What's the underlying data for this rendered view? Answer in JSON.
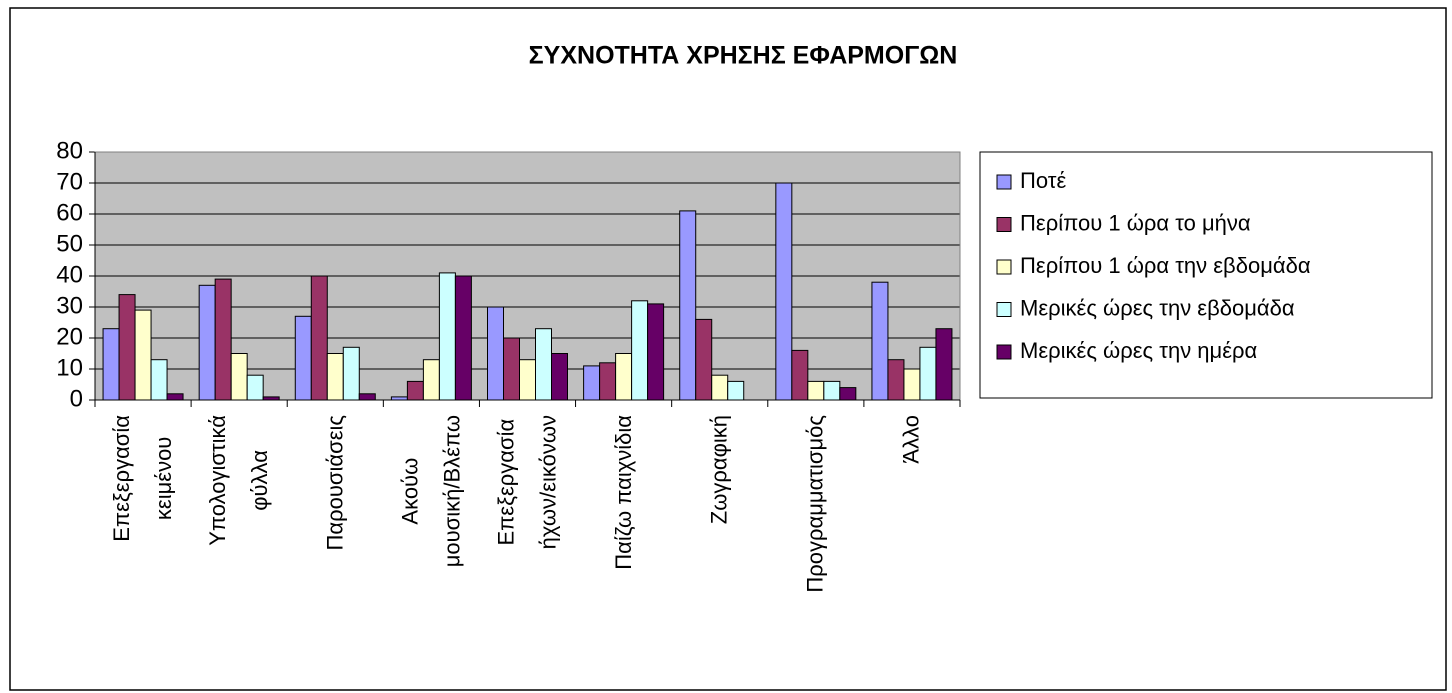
{
  "chart_data": {
    "type": "bar",
    "title": "ΣΥΧΝΟΤΗΤΑ ΧΡΗΣΗΣ ΕΦΑΡΜΟΓΩΝ",
    "categories": [
      "Επεξεργασία\nκειμένου",
      "Υπολογιστικά\nφύλλα",
      "Παρουσιάσεις",
      "Ακούω\nμουσική/Βλέπω",
      "Επεξεργασία\nήχων/εικόνων",
      "Παίζω παιχνίδια",
      "Ζωγραφική",
      "Προγραμματισμός",
      "Άλλο"
    ],
    "series": [
      {
        "name": "Ποτέ",
        "color": "#9999ff",
        "values": [
          23,
          37,
          27,
          1,
          30,
          11,
          61,
          70,
          38
        ]
      },
      {
        "name": "Περίπου 1 ώρα το μήνα",
        "color": "#993366",
        "values": [
          34,
          39,
          40,
          6,
          20,
          12,
          26,
          16,
          13
        ]
      },
      {
        "name": "Περίπου 1 ώρα την εβδομάδα",
        "color": "#ffffcc",
        "values": [
          29,
          15,
          15,
          13,
          13,
          15,
          8,
          6,
          10
        ]
      },
      {
        "name": "Μερικές ώρες την εβδομάδα",
        "color": "#ccffff",
        "values": [
          13,
          8,
          17,
          41,
          23,
          32,
          6,
          6,
          17
        ]
      },
      {
        "name": "Μερικές ώρες την ημέρα",
        "color": "#660066",
        "values": [
          2,
          1,
          2,
          40,
          15,
          31,
          0,
          4,
          23
        ]
      }
    ],
    "ylim": [
      0,
      80
    ],
    "yticks": [
      0,
      10,
      20,
      30,
      40,
      50,
      60,
      70,
      80
    ],
    "grid": true,
    "legend": "right"
  }
}
